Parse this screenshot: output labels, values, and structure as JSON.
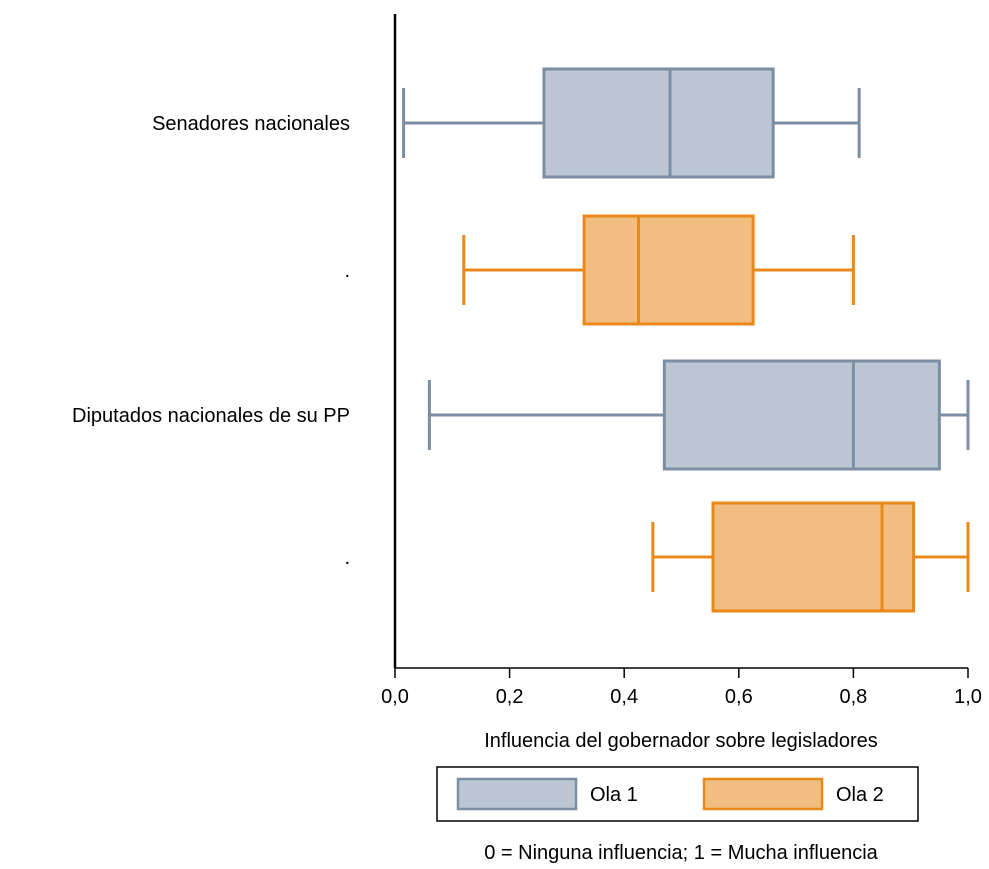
{
  "chart_data": {
    "type": "boxplot",
    "orientation": "horizontal",
    "title": "",
    "xlabel": "Influencia del gobernador sobre legisladores",
    "ylabel": "",
    "xlim": [
      0,
      1
    ],
    "x_ticks": [
      0,
      0.2,
      0.4,
      0.6,
      0.8,
      1.0
    ],
    "x_tick_labels": [
      "0,0",
      "0,2",
      "0,4",
      "0,6",
      "0,8",
      "1,0"
    ],
    "grid": false,
    "legend_position": "bottom",
    "note": "0 = Ninguna influencia; 1 = Mucha influencia",
    "series": [
      {
        "name": "Ola 1",
        "fill": "#bdc7d3",
        "stroke": "#7b8ea3"
      },
      {
        "name": "Ola 2",
        "fill": "#f1bd80",
        "stroke": "#e8891a"
      }
    ],
    "boxes": [
      {
        "group_label": "Senadores nacionales",
        "series": 0,
        "whisker_low": 0.015,
        "q1": 0.26,
        "median": 0.48,
        "q3": 0.66,
        "whisker_high": 0.81
      },
      {
        "group_label": ".",
        "series": 1,
        "whisker_low": 0.12,
        "q1": 0.33,
        "median": 0.425,
        "q3": 0.625,
        "whisker_high": 0.8
      },
      {
        "group_label": "Diputados nacionales de su PP",
        "series": 0,
        "whisker_low": 0.06,
        "q1": 0.47,
        "median": 0.8,
        "q3": 0.95,
        "whisker_high": 1.0
      },
      {
        "group_label": ".",
        "series": 1,
        "whisker_low": 0.45,
        "q1": 0.555,
        "median": 0.85,
        "q3": 0.905,
        "whisker_high": 1.0
      }
    ]
  }
}
